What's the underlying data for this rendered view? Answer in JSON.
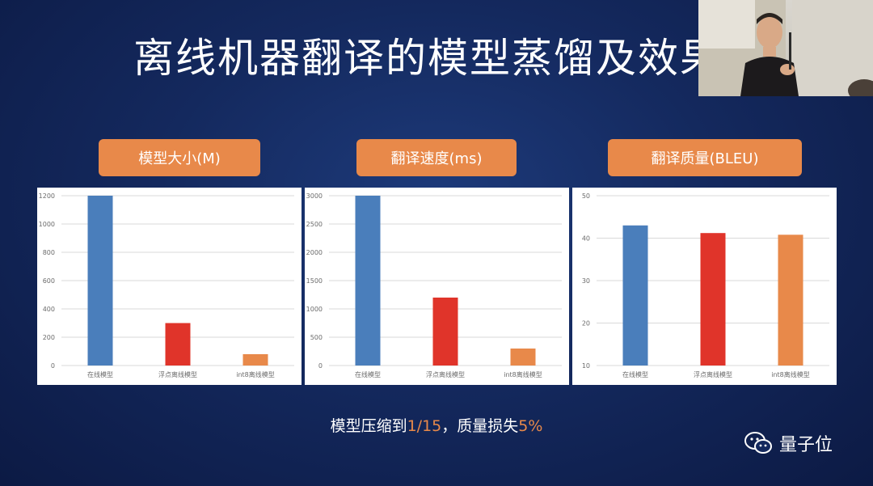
{
  "slide": {
    "title": "离线机器翻译的模型蒸馏及效果",
    "summary_prefix": "模型压缩到",
    "summary_ratio": "1/15",
    "summary_middle": "，质量损失",
    "summary_loss": "5%"
  },
  "watermark": {
    "text": "量子位",
    "icon": "wechat-icon"
  },
  "colors": {
    "accent": "#e8894a",
    "blue": "#4a7ebb",
    "red": "#e0342a",
    "orange": "#e8894a"
  },
  "chart_data": [
    {
      "type": "bar",
      "title": "模型大小(M)",
      "categories": [
        "在线模型",
        "浮点离线模型",
        "int8离线模型"
      ],
      "values": [
        1200,
        300,
        80
      ],
      "ylim": [
        0,
        1200
      ],
      "yticks": [
        "0",
        "200",
        "400",
        "600",
        "800",
        "1000",
        "1200"
      ],
      "grid": true
    },
    {
      "type": "bar",
      "title": "翻译速度(ms)",
      "categories": [
        "在线模型",
        "浮点离线模型",
        "int8离线模型"
      ],
      "values": [
        3000,
        1200,
        300
      ],
      "ylim": [
        0,
        3000
      ],
      "yticks": [
        "0",
        "500",
        "1000",
        "1500",
        "2000",
        "2500",
        "3000"
      ],
      "grid": true
    },
    {
      "type": "bar",
      "title": "翻译质量(BLEU)",
      "categories": [
        "在线模型",
        "浮点离线模型",
        "int8离线模型"
      ],
      "values": [
        43,
        41.2,
        40.8
      ],
      "ylim": [
        10,
        50
      ],
      "yticks": [
        "10",
        "20",
        "30",
        "40",
        "50"
      ],
      "grid": true
    }
  ]
}
